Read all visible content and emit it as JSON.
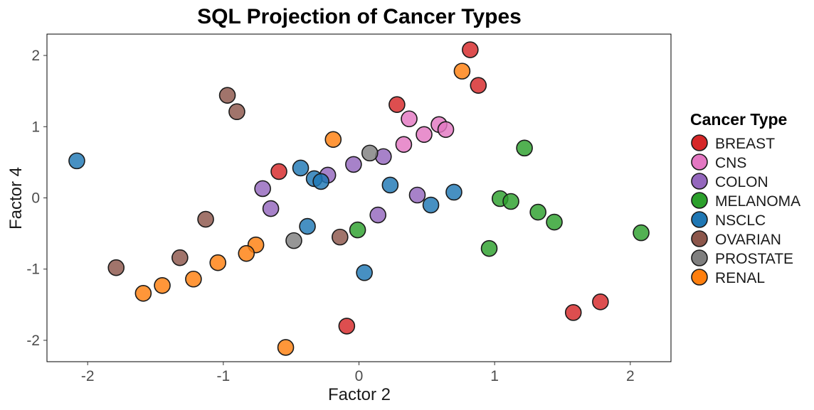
{
  "chart_data": {
    "type": "scatter",
    "title": "SQL Projection of Cancer Types",
    "xlabel": "Factor 2",
    "ylabel": "Factor 4",
    "xlim": [
      -2.3,
      2.3
    ],
    "ylim": [
      -2.3,
      2.3
    ],
    "xticks": [
      -2,
      -1,
      0,
      1,
      2
    ],
    "yticks": [
      -2,
      -1,
      0,
      1,
      2
    ],
    "xtick_labels": [
      "-2",
      "-1",
      "0",
      "1",
      "2"
    ],
    "ytick_labels": [
      "-2",
      "-1",
      "0",
      "1",
      "2"
    ],
    "grid": false,
    "legend": {
      "title": "Cancer Type",
      "placement": "right"
    },
    "series": [
      {
        "name": "BREAST",
        "color": "#d62728",
        "points": [
          [
            0.82,
            2.08
          ],
          [
            0.88,
            1.58
          ],
          [
            0.28,
            1.31
          ],
          [
            -0.59,
            0.37
          ],
          [
            -0.09,
            -1.8
          ],
          [
            1.58,
            -1.61
          ],
          [
            1.78,
            -1.46
          ]
        ]
      },
      {
        "name": "CNS",
        "color": "#e377c2",
        "points": [
          [
            0.37,
            1.11
          ],
          [
            0.59,
            1.03
          ],
          [
            0.64,
            0.96
          ],
          [
            0.48,
            0.89
          ],
          [
            0.33,
            0.75
          ]
        ]
      },
      {
        "name": "COLON",
        "color": "#9467bd",
        "points": [
          [
            0.18,
            0.58
          ],
          [
            -0.04,
            0.47
          ],
          [
            -0.23,
            0.32
          ],
          [
            -0.71,
            0.13
          ],
          [
            -0.65,
            -0.15
          ],
          [
            0.43,
            0.04
          ],
          [
            0.14,
            -0.24
          ]
        ]
      },
      {
        "name": "MELANOMA",
        "color": "#2ca02c",
        "points": [
          [
            1.22,
            0.7
          ],
          [
            1.04,
            -0.01
          ],
          [
            1.12,
            -0.05
          ],
          [
            1.32,
            -0.2
          ],
          [
            1.44,
            -0.34
          ],
          [
            2.08,
            -0.49
          ],
          [
            -0.01,
            -0.45
          ],
          [
            0.96,
            -0.71
          ]
        ]
      },
      {
        "name": "NSCLC",
        "color": "#1f77b4",
        "points": [
          [
            -2.08,
            0.52
          ],
          [
            -0.43,
            0.42
          ],
          [
            -0.33,
            0.27
          ],
          [
            -0.28,
            0.23
          ],
          [
            0.23,
            0.18
          ],
          [
            0.7,
            0.08
          ],
          [
            0.53,
            -0.1
          ],
          [
            -0.38,
            -0.4
          ],
          [
            0.04,
            -1.05
          ]
        ]
      },
      {
        "name": "OVARIAN",
        "color": "#8c564b",
        "points": [
          [
            -0.97,
            1.44
          ],
          [
            -0.9,
            1.21
          ],
          [
            -1.13,
            -0.3
          ],
          [
            -1.32,
            -0.84
          ],
          [
            -1.79,
            -0.98
          ],
          [
            -0.14,
            -0.55
          ]
        ]
      },
      {
        "name": "PROSTATE",
        "color": "#7f7f7f",
        "points": [
          [
            0.08,
            0.63
          ],
          [
            -0.48,
            -0.6
          ]
        ]
      },
      {
        "name": "RENAL",
        "color": "#ff7f0e",
        "points": [
          [
            0.76,
            1.78
          ],
          [
            -0.19,
            0.82
          ],
          [
            -0.76,
            -0.66
          ],
          [
            -0.83,
            -0.78
          ],
          [
            -1.04,
            -0.91
          ],
          [
            -1.22,
            -1.14
          ],
          [
            -1.45,
            -1.23
          ],
          [
            -1.59,
            -1.34
          ],
          [
            -0.54,
            -2.1
          ]
        ]
      }
    ]
  }
}
